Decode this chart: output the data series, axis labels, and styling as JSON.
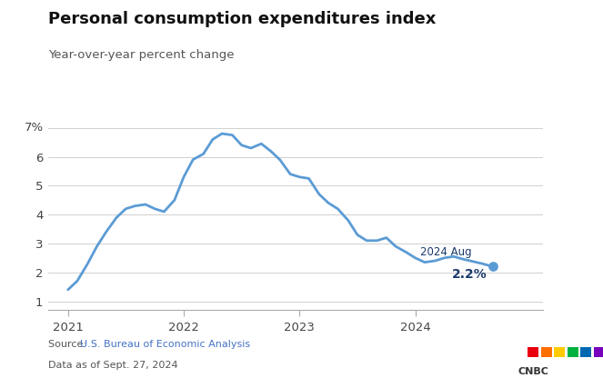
{
  "title": "Personal consumption expenditures index",
  "subtitle": "Year-over-year percent change",
  "line_color": "#5b9bd5",
  "background_color": "#ffffff",
  "annotation_label": "2024 Aug",
  "annotation_value": "2.2%",
  "annotation_color": "#1a3a6b",
  "source_text": "Source: ",
  "source_link_text": "U.S. Bureau of Economic Analysis",
  "source_link_color": "#4472c4",
  "source_date": "Data as of Sept. 27, 2024",
  "yticks": [
    1,
    2,
    3,
    4,
    5,
    6
  ],
  "ytick_top_label": "7%",
  "ylim": [
    0.7,
    7.5
  ],
  "xlim_min": 2020.83,
  "xlim_max": 2025.1,
  "x_data": [
    2021.0,
    2021.08,
    2021.17,
    2021.25,
    2021.33,
    2021.42,
    2021.5,
    2021.58,
    2021.67,
    2021.75,
    2021.83,
    2021.92,
    2022.0,
    2022.08,
    2022.17,
    2022.25,
    2022.33,
    2022.42,
    2022.5,
    2022.58,
    2022.67,
    2022.75,
    2022.83,
    2022.92,
    2023.0,
    2023.08,
    2023.17,
    2023.25,
    2023.33,
    2023.42,
    2023.5,
    2023.58,
    2023.67,
    2023.75,
    2023.83,
    2023.92,
    2024.0,
    2024.08,
    2024.17,
    2024.25,
    2024.33,
    2024.42,
    2024.58,
    2024.67
  ],
  "y_data": [
    1.4,
    1.7,
    2.3,
    2.9,
    3.4,
    3.9,
    4.2,
    4.3,
    4.35,
    4.2,
    4.1,
    4.5,
    5.3,
    5.9,
    6.1,
    6.6,
    6.8,
    6.75,
    6.4,
    6.3,
    6.45,
    6.2,
    5.9,
    5.4,
    5.3,
    5.25,
    4.7,
    4.4,
    4.2,
    3.8,
    3.3,
    3.1,
    3.1,
    3.2,
    2.9,
    2.7,
    2.5,
    2.35,
    2.4,
    2.5,
    2.55,
    2.45,
    2.3,
    2.2
  ],
  "xtick_positions": [
    2021.0,
    2022.0,
    2023.0,
    2024.0
  ],
  "xtick_labels": [
    "2021",
    "2022",
    "2023",
    "2024"
  ],
  "cnbc_colors": [
    "#cc0000",
    "#ff6600",
    "#ffcc00",
    "#009933",
    "#0066cc",
    "#6600cc"
  ]
}
